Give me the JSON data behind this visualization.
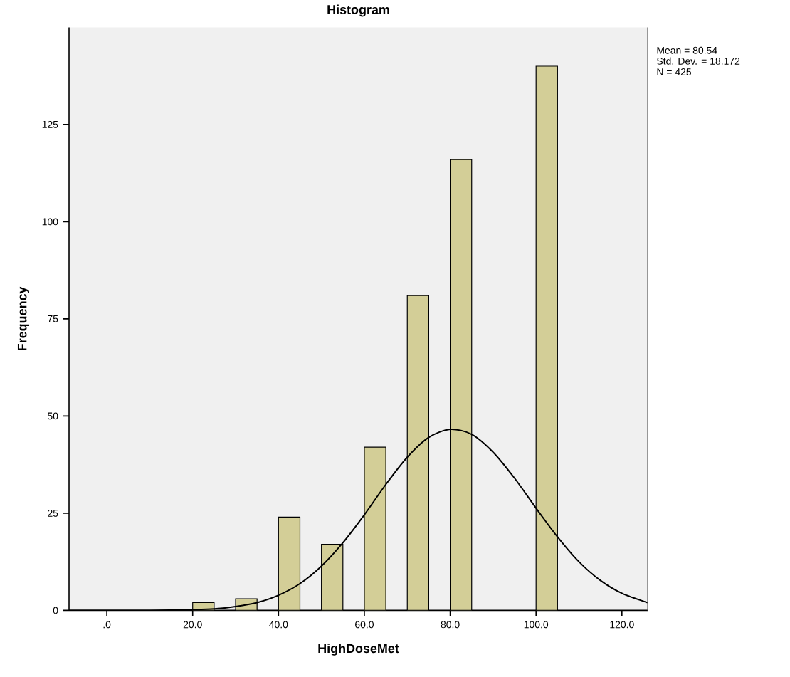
{
  "chart_data": {
    "type": "histogram",
    "title": "Histogram",
    "xlabel": "HighDoseMet",
    "ylabel": "Frequency",
    "bins": [
      20,
      25,
      30,
      35,
      40,
      45,
      50,
      55,
      60,
      65,
      70,
      75,
      80,
      85,
      90,
      95,
      100,
      105
    ],
    "values": [
      2,
      0,
      3,
      0,
      24,
      0,
      17,
      0,
      42,
      0,
      81,
      0,
      116,
      0,
      0,
      0,
      140
    ],
    "color": "#d3ce97",
    "series": [
      {
        "type": "line",
        "color": "#000000",
        "x": [
          -8.8,
          0,
          10,
          20,
          25,
          30,
          35,
          40,
          45,
          50,
          55,
          60,
          65,
          70,
          75,
          80,
          85,
          90,
          95,
          100,
          105,
          110,
          115,
          120,
          126
        ],
        "values": [
          0,
          0,
          0,
          0.2,
          0.4,
          1.0,
          2.0,
          3.9,
          6.9,
          11.4,
          17.4,
          24.6,
          32.4,
          39.4,
          44.5,
          46.6,
          45.3,
          40.7,
          34.0,
          26.3,
          18.9,
          12.5,
          7.7,
          4.4,
          2.0
        ]
      }
    ],
    "xlim": [
      -8.8,
      126
    ],
    "ylim": [
      0,
      150
    ],
    "xticks": [
      {
        "value": 0,
        "label": ".0"
      },
      {
        "value": 20,
        "label": "20.0"
      },
      {
        "value": 40,
        "label": "40.0"
      },
      {
        "value": 60,
        "label": "60.0"
      },
      {
        "value": 80,
        "label": "80.0"
      },
      {
        "value": 100,
        "label": "100.0"
      },
      {
        "value": 120,
        "label": "120.0"
      }
    ],
    "yticks": [
      0,
      25,
      50,
      75,
      100,
      125
    ],
    "annotations": [
      "Mean = 80.54",
      "Std. Dev. = 18.172",
      "N = 425"
    ],
    "grid": false
  }
}
